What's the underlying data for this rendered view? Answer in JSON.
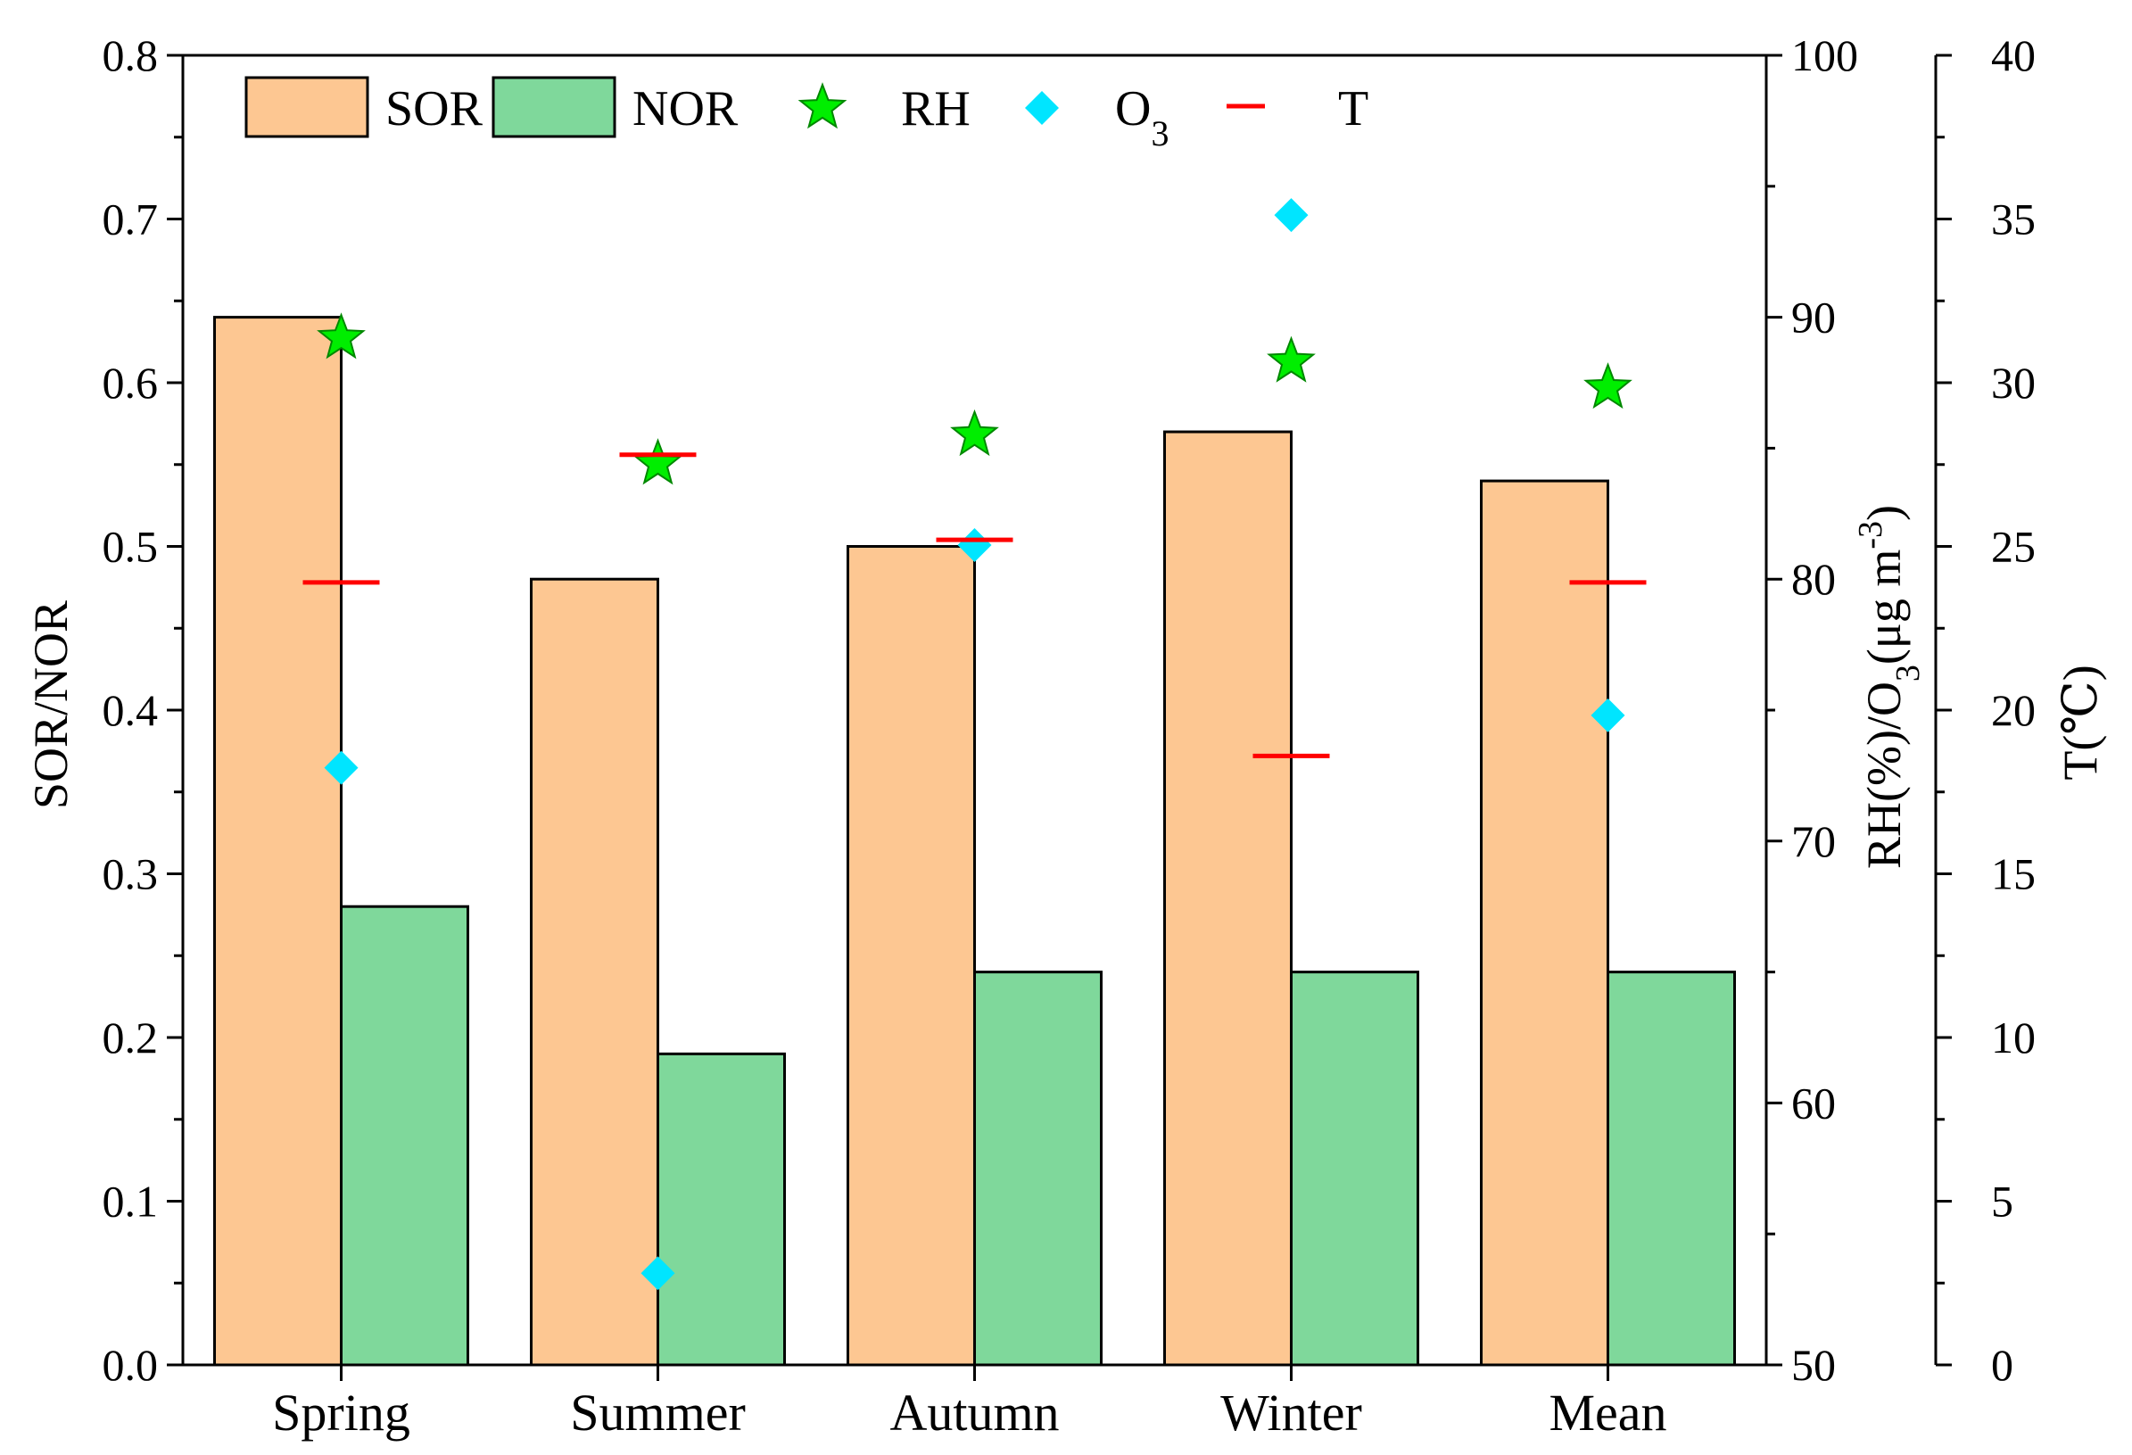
{
  "chart_data": {
    "type": "bar",
    "categories": [
      "Spring",
      "Summer",
      "Autumn",
      "Winter",
      "Mean"
    ],
    "series": [
      {
        "name": "SOR",
        "kind": "bar",
        "axis": "left",
        "color": "#FDC792",
        "values": [
          0.64,
          0.48,
          0.5,
          0.57,
          0.54
        ]
      },
      {
        "name": "NOR",
        "kind": "bar",
        "axis": "left",
        "color": "#7FD89B",
        "values": [
          0.28,
          0.19,
          0.24,
          0.24,
          0.24
        ]
      },
      {
        "name": "RH",
        "kind": "star",
        "axis": "right1",
        "color": "#00EE00",
        "values": [
          89.2,
          84.4,
          85.5,
          88.3,
          87.3
        ]
      },
      {
        "name": "O3",
        "kind": "diamond",
        "axis": "right1",
        "color": "#00E5FF",
        "values": [
          72.8,
          53.5,
          81.3,
          93.9,
          74.8
        ]
      },
      {
        "name": "T",
        "kind": "dash",
        "axis": "right2",
        "color": "#FF0000",
        "values": [
          23.9,
          27.8,
          25.2,
          18.6,
          23.9
        ]
      }
    ],
    "axes": {
      "left": {
        "label": "SOR/NOR",
        "ylim": [
          0,
          0.8
        ],
        "ticks": [
          "0.0",
          "0.1",
          "0.2",
          "0.3",
          "0.4",
          "0.5",
          "0.6",
          "0.7",
          "0.8"
        ]
      },
      "right1": {
        "label_main": "RH(%)/O",
        "label_sub": "3",
        "label_unit": "(μg m",
        "label_sup": "-3",
        "label_close": ")",
        "ylim": [
          50,
          100
        ],
        "ticks": [
          "50",
          "60",
          "70",
          "80",
          "90",
          "100"
        ]
      },
      "right2": {
        "label": "T(℃)",
        "ylim": [
          0,
          40
        ],
        "ticks": [
          "0",
          "5",
          "10",
          "15",
          "20",
          "25",
          "30",
          "35",
          "40"
        ]
      }
    },
    "legend": {
      "position": "top-left",
      "items": [
        {
          "label": "SOR"
        },
        {
          "label": "NOR"
        },
        {
          "label": "RH"
        },
        {
          "label": "O",
          "sub": "3"
        },
        {
          "label": "T"
        }
      ]
    }
  }
}
